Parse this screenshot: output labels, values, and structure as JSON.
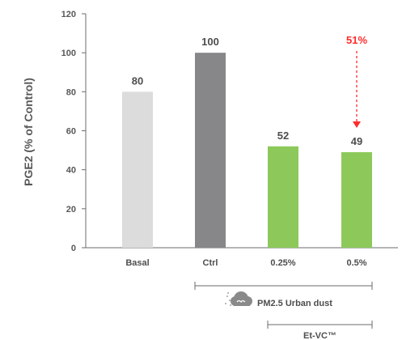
{
  "chart_data": {
    "type": "bar",
    "title": "",
    "xlabel": "",
    "ylabel": "PGE2 (% of Control)",
    "ylim": [
      0,
      120
    ],
    "yticks": [
      0,
      20,
      40,
      60,
      80,
      100,
      120
    ],
    "grid": false,
    "categories": [
      "Basal",
      "Ctrl",
      "0.25%",
      "0.5%"
    ],
    "values": [
      80,
      100,
      52,
      49
    ],
    "value_labels": [
      "80",
      "100",
      "52",
      "49"
    ],
    "bar_colors": [
      "#dcdcdc",
      "#87878a",
      "#8cc95a",
      "#8cc95a"
    ],
    "annotation": {
      "label": "51%",
      "color": "#ff2a2a",
      "from_category": "0.5%",
      "from_value": 100,
      "to_value": 49
    },
    "groups": [
      {
        "label": "PM2.5 Urban dust",
        "categories": [
          "Ctrl",
          "0.25%",
          "0.5%"
        ],
        "icon": "dust-cloud-icon"
      },
      {
        "label": "Et-VC™",
        "categories": [
          "0.25%",
          "0.5%"
        ]
      }
    ]
  }
}
